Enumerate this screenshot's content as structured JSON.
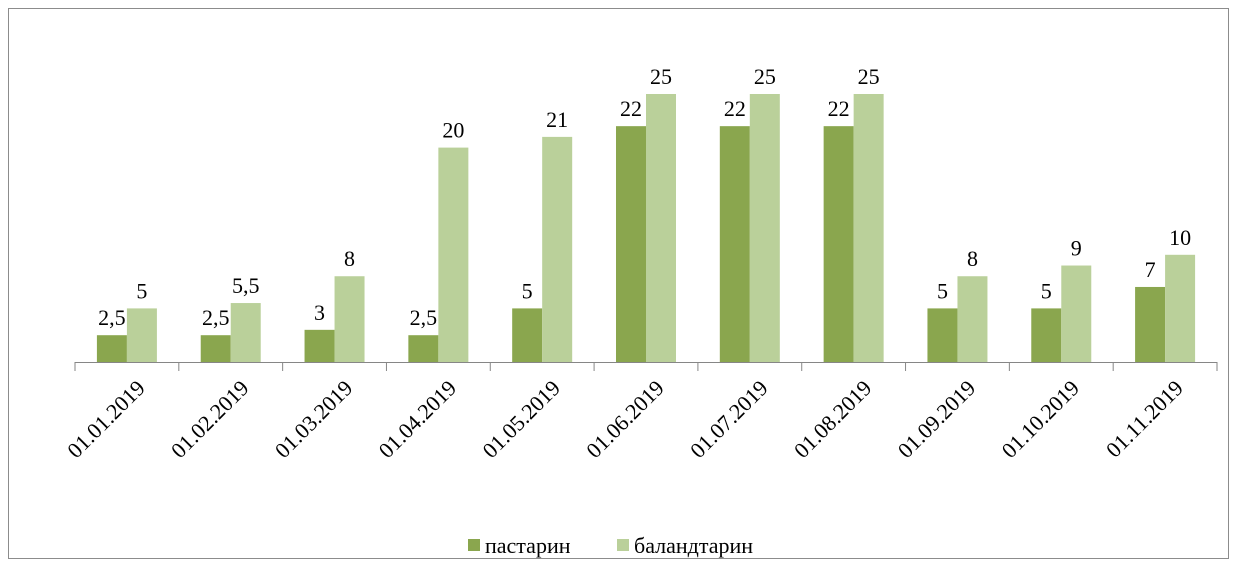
{
  "chart_data": {
    "type": "bar",
    "categories": [
      "01.01.2019",
      "01.02.2019",
      "01.03.2019",
      "01.04.2019",
      "01.05.2019",
      "01.06.2019",
      "01.07.2019",
      "01.08.2019",
      "01.09.2019",
      "01.10.2019",
      "01.11.2019"
    ],
    "series": [
      {
        "name": "пастарин",
        "color": "#8aa64e",
        "values": [
          2.5,
          2.5,
          3,
          2.5,
          5,
          22,
          22,
          22,
          5,
          5,
          7
        ],
        "value_labels": [
          "2,5",
          "2,5",
          "3",
          "2,5",
          "5",
          "22",
          "22",
          "22",
          "5",
          "5",
          "7"
        ]
      },
      {
        "name": "баландтарин",
        "color": "#bad09a",
        "values": [
          5,
          5.5,
          8,
          20,
          21,
          25,
          25,
          25,
          8,
          9,
          10
        ],
        "value_labels": [
          "5",
          "5,5",
          "8",
          "20",
          "21",
          "25",
          "25",
          "25",
          "8",
          "9",
          "10"
        ]
      }
    ],
    "legend": "bottom"
  }
}
